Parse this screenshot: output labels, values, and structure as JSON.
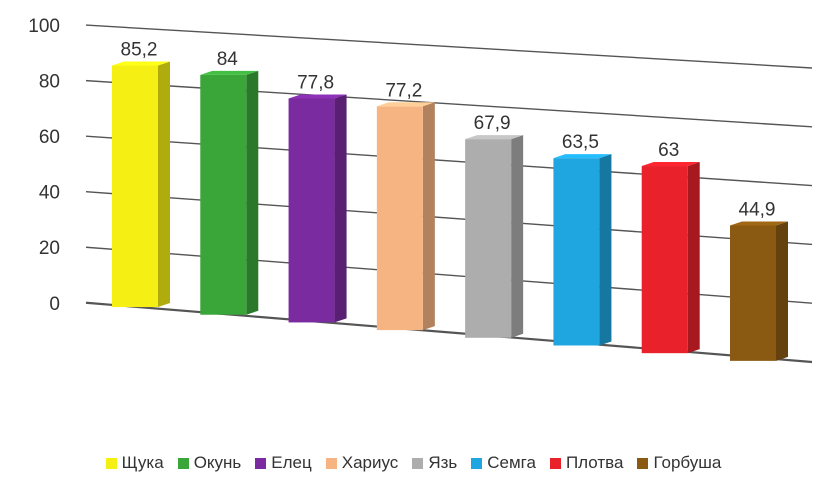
{
  "chart_data": {
    "type": "bar",
    "style": "3d-perspective",
    "categories": [
      "Щука",
      "Окунь",
      "Елец",
      "Хариус",
      "Язь",
      "Семга",
      "Плотва",
      "Горбуша"
    ],
    "values": [
      85.2,
      84,
      77.8,
      77.2,
      67.9,
      63.5,
      63,
      44.9
    ],
    "value_labels": [
      "85,2",
      "84",
      "77,8",
      "77,2",
      "67,9",
      "63,5",
      "63",
      "44,9"
    ],
    "colors": [
      "#f5ef14",
      "#3aa63a",
      "#7b2ba0",
      "#f7b483",
      "#adadad",
      "#1fa5e0",
      "#e8212b",
      "#8b5a12"
    ],
    "ylim": [
      0,
      100
    ],
    "yticks": [
      0,
      20,
      40,
      60,
      80,
      100
    ],
    "grid": true,
    "legend_position": "bottom"
  }
}
